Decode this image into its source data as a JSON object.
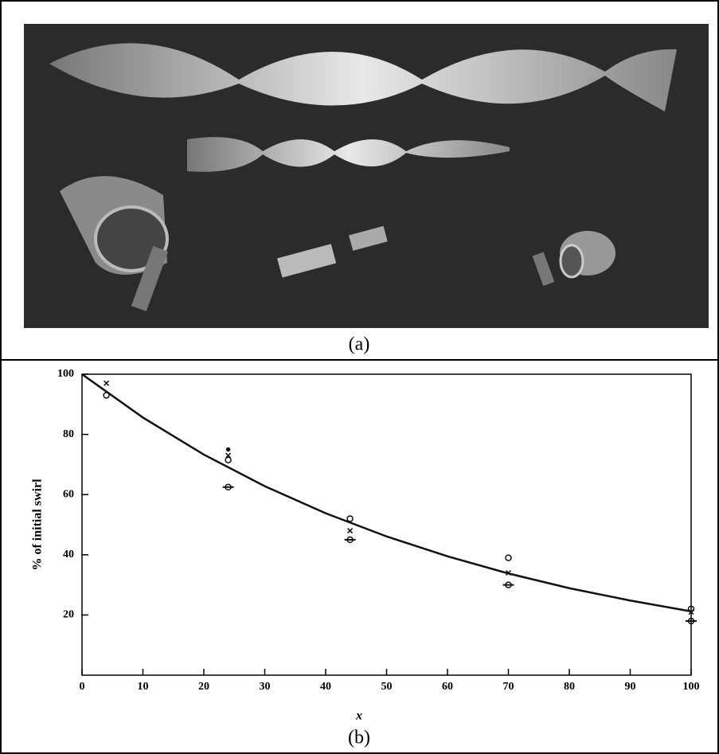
{
  "captions": [
    "(a)",
    "(b)"
  ],
  "chart_data": {
    "type": "scatter",
    "xlabel": "x",
    "ylabel": "% of initial swirl",
    "xlim": [
      0,
      100
    ],
    "ylim": [
      0,
      100
    ],
    "xticks": [
      0,
      10,
      20,
      30,
      40,
      50,
      60,
      70,
      80,
      90,
      100
    ],
    "yticks": [
      20,
      40,
      60,
      80,
      100
    ],
    "color": "#111111",
    "points": {
      "x": [
        4,
        4,
        24,
        24,
        24,
        24,
        44,
        44,
        44,
        70,
        70,
        70,
        100,
        100,
        100
      ],
      "values": [
        97,
        93,
        75,
        73,
        71.5,
        62.5,
        52,
        48,
        45,
        39,
        34,
        30,
        22,
        21,
        18
      ],
      "markers": [
        "cross",
        "circle",
        "dot",
        "cross",
        "circle",
        "bar-circle",
        "circle",
        "cross",
        "bar-circle",
        "circle",
        "cross",
        "bar-circle",
        "circle",
        "cross",
        "bar-circle"
      ]
    },
    "curve": {
      "x": [
        0,
        10,
        20,
        30,
        40,
        50,
        60,
        70,
        80,
        90,
        100
      ],
      "values": [
        100,
        85.6,
        73.3,
        62.8,
        53.8,
        46.1,
        39.5,
        33.8,
        28.9,
        24.8,
        21.2
      ]
    }
  }
}
